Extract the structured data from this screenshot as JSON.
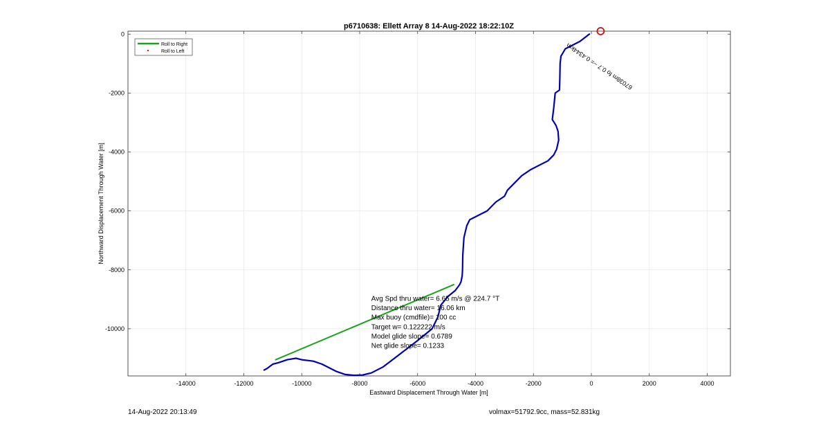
{
  "chart_data": {
    "type": "line",
    "title": "p6710638: Ellett Array 8 14-Aug-2022 18:22:10Z",
    "xlabel": "Eastward Displacement Through Water [m]",
    "ylabel": "Northward Displacement Through Water [m]",
    "xlim": [
      -16000,
      4800
    ],
    "ylim": [
      -11600,
      100
    ],
    "xticks": [
      -14000,
      -12000,
      -10000,
      -8000,
      -6000,
      -4000,
      -2000,
      0,
      2000,
      4000
    ],
    "yticks": [
      0,
      -2000,
      -4000,
      -6000,
      -8000,
      -10000
    ],
    "grid": true,
    "legend": {
      "placement": "top-left",
      "entries": [
        {
          "label": "Roll to Right",
          "color": "#1aa31a",
          "style": "line"
        },
        {
          "label": "Roll to Left",
          "color": "#e01010",
          "style": "dot"
        }
      ]
    },
    "series": [
      {
        "color": "#0000b4",
        "x": [
          -70,
          -400,
          -900,
          -1050,
          -1080,
          -1090,
          -1100,
          -1250,
          -1300,
          -1350,
          -1220,
          -1150,
          -1130,
          -1200,
          -1300,
          -1500,
          -1800,
          -2100,
          -2400,
          -2700,
          -2900,
          -3000,
          -3300,
          -3600,
          -3900,
          -4200,
          -4300,
          -4400,
          -4420,
          -4440,
          -4450,
          -4460,
          -4500,
          -4550,
          -4700,
          -4950,
          -5200,
          -5300,
          -5500,
          -6000,
          -6400,
          -6800,
          -7200,
          -7600,
          -7900,
          -8200,
          -8500,
          -8800,
          -9000,
          -9300,
          -9600,
          -10000,
          -10200,
          -10500,
          -10800,
          -11000,
          -11200,
          -11300
        ],
        "y": [
          0,
          -250,
          -500,
          -750,
          -1000,
          -1500,
          -1900,
          -2000,
          -2500,
          -2900,
          -3100,
          -3300,
          -3600,
          -3900,
          -4100,
          -4300,
          -4450,
          -4600,
          -4800,
          -5100,
          -5300,
          -5500,
          -5700,
          -6000,
          -6150,
          -6300,
          -6500,
          -6900,
          -7200,
          -7500,
          -8000,
          -8200,
          -8400,
          -8500,
          -8700,
          -8900,
          -9200,
          -9600,
          -10000,
          -10400,
          -10700,
          -11000,
          -11300,
          -11500,
          -11570,
          -11580,
          -11550,
          -11450,
          -11350,
          -11200,
          -11100,
          -11050,
          -11000,
          -11050,
          -11150,
          -11200,
          -11350,
          -11400
        ]
      },
      {
        "color": "#1aa31a",
        "x": [
          -4750,
          -10900
        ],
        "y": [
          -8500,
          -11050
        ]
      }
    ],
    "annotations": [
      {
        "text": "Avg Spd thru water=  6.65 m/s @ 224.7 °T",
        "x": -7600,
        "y": -9050
      },
      {
        "text": "Distance thru water= 16.06 km",
        "x": -7600,
        "y": -9370
      },
      {
        "text": "Max buoy (cmdfile)= 100 cc",
        "x": -7600,
        "y": -9690
      },
      {
        "text": "Target w= 0.122222 m/s",
        "x": -7600,
        "y": -10010
      },
      {
        "text": "Model glide slope= 0.6789",
        "x": -7600,
        "y": -10330
      },
      {
        "text": "Net glide slope= 0.1233",
        "x": -7600,
        "y": -10650
      }
    ],
    "surface_marker": {
      "x": 320,
      "y": 100,
      "color": "#cc1010"
    },
    "rotated_label": {
      "text": "67038m fo 0.7 ~= 0.4344km",
      "x": -800,
      "y": -300
    }
  },
  "footer": {
    "timestamp": "14-Aug-2022 20:13:49",
    "summary": "volmax=51792.9cc, mass=52.831kg"
  }
}
